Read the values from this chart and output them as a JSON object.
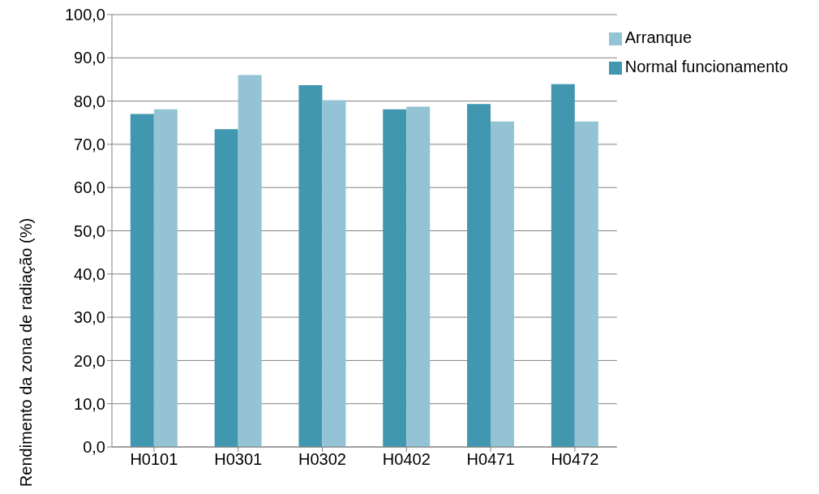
{
  "chart_data": {
    "type": "bar",
    "ylabel": "Rendimento da zona de radiação (%)",
    "categories": [
      "H0101",
      "H0301",
      "H0302",
      "H0402",
      "H0471",
      "H0472"
    ],
    "series": [
      {
        "name": "Normal funcionamento",
        "color": "#4197b0",
        "values": [
          77.0,
          73.5,
          83.7,
          78.1,
          79.3,
          83.9
        ]
      },
      {
        "name": "Arranque",
        "color": "#93c3d4",
        "values": [
          78.1,
          86.0,
          80.2,
          78.7,
          75.3,
          75.3
        ]
      }
    ],
    "ylim": [
      0,
      100
    ],
    "yticks": [
      {
        "value": 0,
        "label": "0,0"
      },
      {
        "value": 10,
        "label": "10,0"
      },
      {
        "value": 20,
        "label": "20,0"
      },
      {
        "value": 30,
        "label": "30,0"
      },
      {
        "value": 40,
        "label": "40,0"
      },
      {
        "value": 50,
        "label": "50,0"
      },
      {
        "value": 60,
        "label": "60,0"
      },
      {
        "value": 70,
        "label": "70,0"
      },
      {
        "value": 80,
        "label": "80,0"
      },
      {
        "value": 90,
        "label": "90,0"
      },
      {
        "value": 100,
        "label": "100,0"
      }
    ],
    "grid": "y",
    "legend": "top right"
  }
}
